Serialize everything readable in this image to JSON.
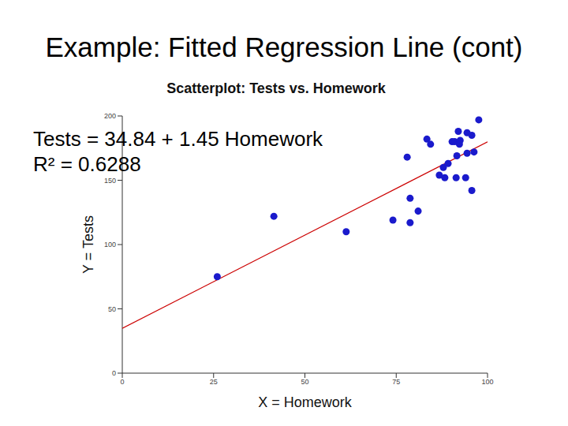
{
  "title": "Example: Fitted Regression Line (cont)",
  "chart_data": {
    "type": "scatter",
    "title": "Scatterplot: Tests vs. Homework",
    "x_label": "X = Homework",
    "y_label": "Y = Tests",
    "annotations": [
      "Tests = 34.84 + 1.45 Homework",
      "R² = 0.6288"
    ],
    "x": [
      26,
      41.5,
      61.3,
      74.1,
      78,
      78.8,
      78.8,
      81,
      83.4,
      84.4,
      86.8,
      87.9,
      88.3,
      89.2,
      90.3,
      91,
      91.4,
      91.6,
      92,
      92.3,
      92.5,
      94,
      94.4,
      94.4,
      95.7,
      95.7,
      96.3,
      97.6
    ],
    "values": [
      75,
      122,
      110,
      119,
      168,
      117,
      136,
      126,
      182,
      178,
      154,
      160,
      152,
      163,
      180,
      180,
      152,
      169,
      188,
      178,
      181,
      152,
      171,
      187,
      185,
      142,
      172,
      197
    ],
    "color": "#1a1acc",
    "marker": "circle",
    "fit": {
      "x": [
        0,
        100
      ],
      "values": [
        34.84,
        179.84
      ],
      "color": "#cc0000",
      "line_style": "solid"
    },
    "xlim": [
      0,
      100
    ],
    "xticks": [
      0,
      25,
      50,
      75,
      100
    ],
    "ylim": [
      0,
      200
    ],
    "yticks": [
      0,
      50,
      100,
      150,
      200
    ],
    "grid": false
  }
}
